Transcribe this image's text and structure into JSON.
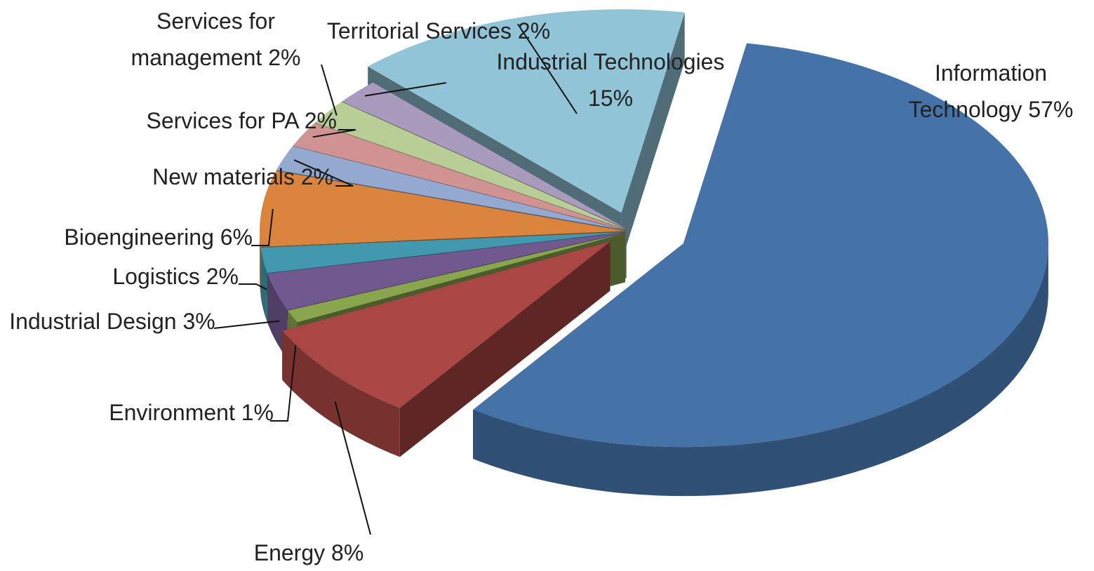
{
  "chart_data": {
    "type": "pie3d",
    "categories": [
      "Information Technology",
      "Energy",
      "Environment",
      "Industrial Design",
      "Logistics",
      "Bioengineering",
      "New materials",
      "Services for PA",
      "Services for management",
      "Territorial Services",
      "Industrial Technologies"
    ],
    "values": [
      57,
      8,
      1,
      3,
      2,
      6,
      2,
      2,
      2,
      2,
      15
    ],
    "value_labels": [
      "57%",
      "8%",
      "1%",
      "3%",
      "2%",
      "6%",
      "2%",
      "2%",
      "2%",
      "2%",
      "15%"
    ],
    "colors": [
      "#4572a7",
      "#aa4643",
      "#89a54e",
      "#71588f",
      "#4198af",
      "#db843d",
      "#93a9cf",
      "#d19392",
      "#b9cd96",
      "#a99bbd",
      "#92c4d7"
    ]
  }
}
